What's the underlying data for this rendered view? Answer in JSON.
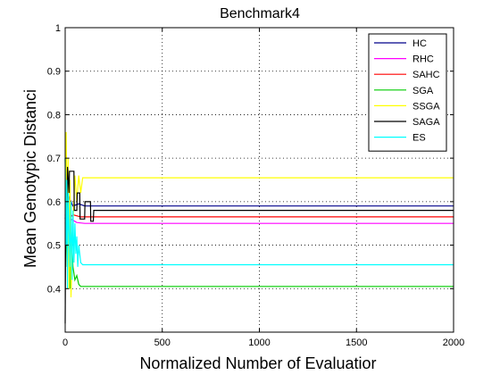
{
  "chart_data": {
    "type": "line",
    "title": "Benchmark4",
    "xlabel": "Normalized Number of Evaluatior",
    "ylabel": "Mean Genotypic Distanci",
    "xlim": [
      0,
      2000
    ],
    "ylim": [
      0.3,
      1
    ],
    "xticks": [
      "0",
      "500",
      "1000",
      "1500",
      "2000"
    ],
    "xtick_values": [
      0,
      500,
      1000,
      1500,
      2000
    ],
    "yticks": [
      "0.4",
      "0.5",
      "0.6",
      "0.7",
      "0.8",
      "0.9",
      "1"
    ],
    "ytick_values": [
      0.4,
      0.5,
      0.6,
      0.7,
      0.8,
      0.9,
      1
    ],
    "grid": true,
    "legend_position": "top-right",
    "series": [
      {
        "name": "HC",
        "color": "#00008b",
        "x": [
          0,
          5,
          12,
          20,
          40,
          70,
          100,
          2000
        ],
        "y": [
          0.56,
          0.62,
          0.58,
          0.61,
          0.59,
          0.595,
          0.59,
          0.59
        ]
      },
      {
        "name": "RHC",
        "color": "#ff00ff",
        "x": [
          0,
          5,
          15,
          30,
          60,
          100,
          2000
        ],
        "y": [
          0.57,
          0.53,
          0.55,
          0.56,
          0.552,
          0.55,
          0.55
        ]
      },
      {
        "name": "SAHC",
        "color": "#ff0000",
        "x": [
          0,
          8,
          20,
          40,
          80,
          2000
        ],
        "y": [
          0.55,
          0.58,
          0.56,
          0.57,
          0.565,
          0.565
        ]
      },
      {
        "name": "SGA",
        "color": "#00cc00",
        "x": [
          0,
          5,
          10,
          15,
          20,
          25,
          30,
          40,
          50,
          60,
          70,
          80,
          100,
          2000
        ],
        "y": [
          0.7,
          0.55,
          0.45,
          0.6,
          0.5,
          0.4,
          0.55,
          0.45,
          0.42,
          0.43,
          0.41,
          0.405,
          0.405,
          0.405
        ]
      },
      {
        "name": "SSGA",
        "color": "#ffff00",
        "x": [
          0,
          5,
          10,
          15,
          20,
          25,
          30,
          40,
          50,
          60,
          70,
          80,
          90,
          2000
        ],
        "y": [
          0.6,
          0.76,
          0.55,
          0.7,
          0.4,
          0.65,
          0.38,
          0.55,
          0.66,
          0.6,
          0.66,
          0.62,
          0.655,
          0.655
        ]
      },
      {
        "name": "SAGA",
        "color": "#000000",
        "x": [
          0,
          3,
          8,
          12,
          20,
          22,
          45,
          47,
          60,
          62,
          75,
          77,
          100,
          102,
          130,
          132,
          145,
          147,
          2000
        ],
        "y": [
          0.32,
          0.6,
          0.52,
          0.68,
          0.62,
          0.67,
          0.67,
          0.58,
          0.58,
          0.62,
          0.62,
          0.56,
          0.56,
          0.6,
          0.6,
          0.555,
          0.555,
          0.58,
          0.58
        ]
      },
      {
        "name": "ES",
        "color": "#00ffff",
        "x": [
          0,
          4,
          8,
          12,
          16,
          20,
          25,
          30,
          35,
          40,
          45,
          50,
          55,
          60,
          65,
          70,
          80,
          90,
          2000
        ],
        "y": [
          0.7,
          0.5,
          0.65,
          0.4,
          0.62,
          0.55,
          0.45,
          0.6,
          0.42,
          0.58,
          0.46,
          0.55,
          0.48,
          0.52,
          0.45,
          0.5,
          0.46,
          0.455,
          0.455
        ]
      }
    ]
  }
}
